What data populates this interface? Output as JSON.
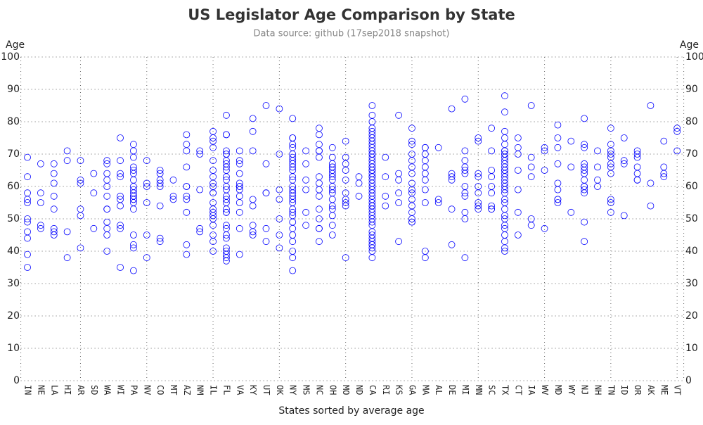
{
  "chart_data": {
    "type": "scatter",
    "title": "US Legislator Age Comparison by State",
    "subtitle": "Data source: github (17sep2018 snapshot)",
    "y_label": "Age",
    "x_label": "States sorted by average age",
    "color": "#0000ff",
    "grid": true,
    "ylim": [
      0,
      100
    ],
    "yticks": [
      0,
      10,
      20,
      30,
      40,
      50,
      60,
      70,
      80,
      90,
      100
    ],
    "categories": [
      "IN",
      "NE",
      "LA",
      "HI",
      "AR",
      "SD",
      "WA",
      "WI",
      "PA",
      "NV",
      "CO",
      "MT",
      "AZ",
      "NM",
      "IL",
      "FL",
      "VA",
      "KY",
      "UT",
      "OK",
      "NY",
      "MS",
      "NC",
      "OH",
      "MO",
      "ND",
      "CA",
      "RI",
      "KS",
      "GA",
      "MA",
      "AL",
      "DE",
      "MI",
      "MN",
      "SC",
      "TX",
      "CT",
      "IA",
      "WV",
      "MD",
      "WY",
      "NJ",
      "NH",
      "TN",
      "ID",
      "OR",
      "AK",
      "ME",
      "VT"
    ],
    "values": [
      [
        69,
        63,
        58,
        56,
        55,
        50,
        49,
        46,
        44,
        39,
        35
      ],
      [
        67,
        58,
        55,
        48,
        47
      ],
      [
        67,
        64,
        61,
        57,
        53,
        47,
        46,
        45
      ],
      [
        71,
        68,
        46,
        38
      ],
      [
        68,
        62,
        61,
        53,
        51,
        41
      ],
      [
        64,
        58,
        47
      ],
      [
        68,
        67,
        64,
        62,
        60,
        57,
        53,
        53,
        49,
        47,
        45,
        40
      ],
      [
        75,
        68,
        64,
        63,
        57,
        56,
        54,
        48,
        47,
        35
      ],
      [
        73,
        71,
        69,
        66,
        65,
        64,
        62,
        60,
        59,
        58,
        57,
        57,
        56,
        56,
        55,
        53,
        45,
        42,
        41,
        34
      ],
      [
        68,
        61,
        60,
        55,
        45,
        38
      ],
      [
        65,
        64,
        62,
        61,
        60,
        54,
        44,
        43
      ],
      [
        62,
        57,
        56
      ],
      [
        76,
        73,
        71,
        66,
        60,
        60,
        57,
        56,
        52,
        42,
        39
      ],
      [
        71,
        70,
        59,
        47,
        46
      ],
      [
        77,
        75,
        74,
        72,
        68,
        65,
        63,
        61,
        60,
        58,
        58,
        55,
        53,
        52,
        51,
        50,
        48,
        45,
        43,
        40
      ],
      [
        82,
        76,
        76,
        71,
        70,
        70,
        68,
        67,
        66,
        65,
        63,
        62,
        60,
        59,
        57,
        56,
        55,
        53,
        52,
        52,
        48,
        47,
        45,
        44,
        41,
        40,
        39,
        38,
        37
      ],
      [
        71,
        68,
        67,
        64,
        61,
        60,
        60,
        59,
        57,
        55,
        52,
        47,
        39
      ],
      [
        81,
        77,
        71,
        56,
        54,
        48,
        46,
        45
      ],
      [
        85,
        67,
        58,
        58,
        47,
        43
      ],
      [
        84,
        70,
        59,
        56,
        50,
        45,
        41
      ],
      [
        81,
        75,
        75,
        73,
        72,
        70,
        69,
        68,
        67,
        66,
        65,
        63,
        62,
        60,
        59,
        58,
        57,
        56,
        55,
        53,
        52,
        51,
        49,
        47,
        45,
        43,
        40,
        38,
        34
      ],
      [
        71,
        67,
        62,
        59,
        52,
        48
      ],
      [
        78,
        76,
        73,
        71,
        71,
        69,
        63,
        61,
        59,
        57,
        53,
        50,
        47,
        47,
        43
      ],
      [
        72,
        69,
        67,
        66,
        66,
        65,
        64,
        63,
        62,
        60,
        59,
        58,
        56,
        54,
        53,
        51,
        48,
        45
      ],
      [
        74,
        69,
        67,
        65,
        62,
        58,
        56,
        55,
        54,
        38
      ],
      [
        63,
        61,
        57
      ],
      [
        85,
        82,
        80,
        78,
        77,
        76,
        75,
        74,
        73,
        72,
        71,
        70,
        70,
        69,
        68,
        67,
        66,
        66,
        65,
        65,
        64,
        63,
        63,
        62,
        61,
        60,
        59,
        58,
        57,
        56,
        55,
        54,
        54,
        53,
        52,
        51,
        50,
        49,
        48,
        46,
        45,
        44,
        43,
        42,
        42,
        41,
        40,
        38
      ],
      [
        69,
        63,
        57,
        54
      ],
      [
        82,
        64,
        62,
        58,
        55,
        43
      ],
      [
        78,
        74,
        73,
        70,
        68,
        66,
        64,
        61,
        59,
        58,
        56,
        54,
        52,
        50,
        49,
        49
      ],
      [
        72,
        72,
        70,
        68,
        66,
        64,
        62,
        59,
        55,
        40,
        38
      ],
      [
        72,
        56,
        55
      ],
      [
        84,
        64,
        63,
        62,
        53,
        42
      ],
      [
        87,
        71,
        68,
        66,
        65,
        64,
        60,
        58,
        57,
        52,
        50,
        38
      ],
      [
        75,
        74,
        64,
        63,
        60,
        58,
        55,
        54,
        53
      ],
      [
        78,
        71,
        65,
        63,
        60,
        58,
        54,
        53,
        53
      ],
      [
        88,
        83,
        77,
        75,
        73,
        71,
        71,
        70,
        70,
        69,
        68,
        67,
        66,
        65,
        65,
        64,
        63,
        62,
        61,
        60,
        59,
        58,
        56,
        55,
        53,
        51,
        50,
        48,
        47,
        45,
        43,
        41,
        40
      ],
      [
        75,
        72,
        70,
        65,
        59,
        52,
        45
      ],
      [
        85,
        69,
        66,
        63,
        50,
        48
      ],
      [
        72,
        71,
        65,
        47
      ],
      [
        79,
        75,
        72,
        67,
        61,
        59,
        56,
        56,
        55
      ],
      [
        74,
        66,
        52
      ],
      [
        81,
        73,
        72,
        67,
        66,
        65,
        64,
        62,
        60,
        60,
        59,
        58,
        49,
        43
      ],
      [
        71,
        66,
        62,
        60
      ],
      [
        78,
        73,
        71,
        70,
        69,
        67,
        66,
        64,
        56,
        55,
        52
      ],
      [
        75,
        68,
        67,
        51
      ],
      [
        71,
        70,
        69,
        66,
        64,
        62,
        62
      ],
      [
        85,
        61,
        54
      ],
      [
        74,
        66,
        64,
        63
      ],
      [
        78,
        77,
        71
      ]
    ]
  }
}
